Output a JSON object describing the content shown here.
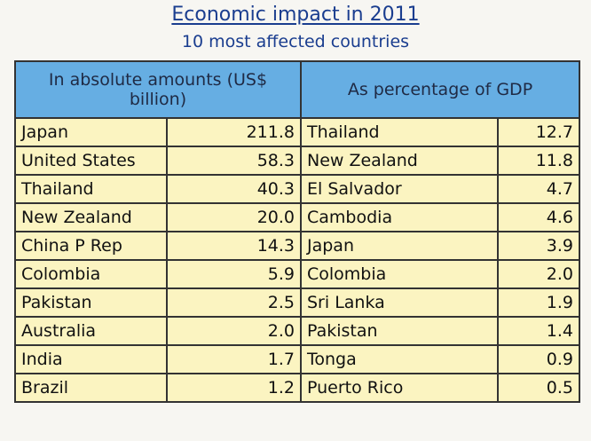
{
  "header": {
    "title": "Economic impact in 2011",
    "subtitle": "10 most affected countries"
  },
  "table": {
    "columns": [
      "In absolute amounts (US$ billion)",
      "As percentage of GDP"
    ],
    "rows": [
      {
        "abs_country": "Japan",
        "abs_value": "211.8",
        "pct_country": "Thailand",
        "pct_value": "12.7"
      },
      {
        "abs_country": "United States",
        "abs_value": "58.3",
        "pct_country": "New Zealand",
        "pct_value": "11.8"
      },
      {
        "abs_country": "Thailand",
        "abs_value": "40.3",
        "pct_country": "El Salvador",
        "pct_value": "4.7"
      },
      {
        "abs_country": "New Zealand",
        "abs_value": "20.0",
        "pct_country": "Cambodia",
        "pct_value": "4.6"
      },
      {
        "abs_country": "China P Rep",
        "abs_value": "14.3",
        "pct_country": "Japan",
        "pct_value": "3.9"
      },
      {
        "abs_country": "Colombia",
        "abs_value": "5.9",
        "pct_country": "Colombia",
        "pct_value": "2.0"
      },
      {
        "abs_country": "Pakistan",
        "abs_value": "2.5",
        "pct_country": "Sri Lanka",
        "pct_value": "1.9"
      },
      {
        "abs_country": "Australia",
        "abs_value": "2.0",
        "pct_country": "Pakistan",
        "pct_value": "1.4"
      },
      {
        "abs_country": "India",
        "abs_value": "1.7",
        "pct_country": "Tonga",
        "pct_value": "0.9"
      },
      {
        "abs_country": "Brazil",
        "abs_value": "1.2",
        "pct_country": "Puerto Rico",
        "pct_value": "0.5"
      }
    ]
  },
  "colors": {
    "title": "#1a3d8f",
    "header_bg": "#66aee3",
    "cell_bg": "#fbf4c1",
    "border": "#333333"
  }
}
